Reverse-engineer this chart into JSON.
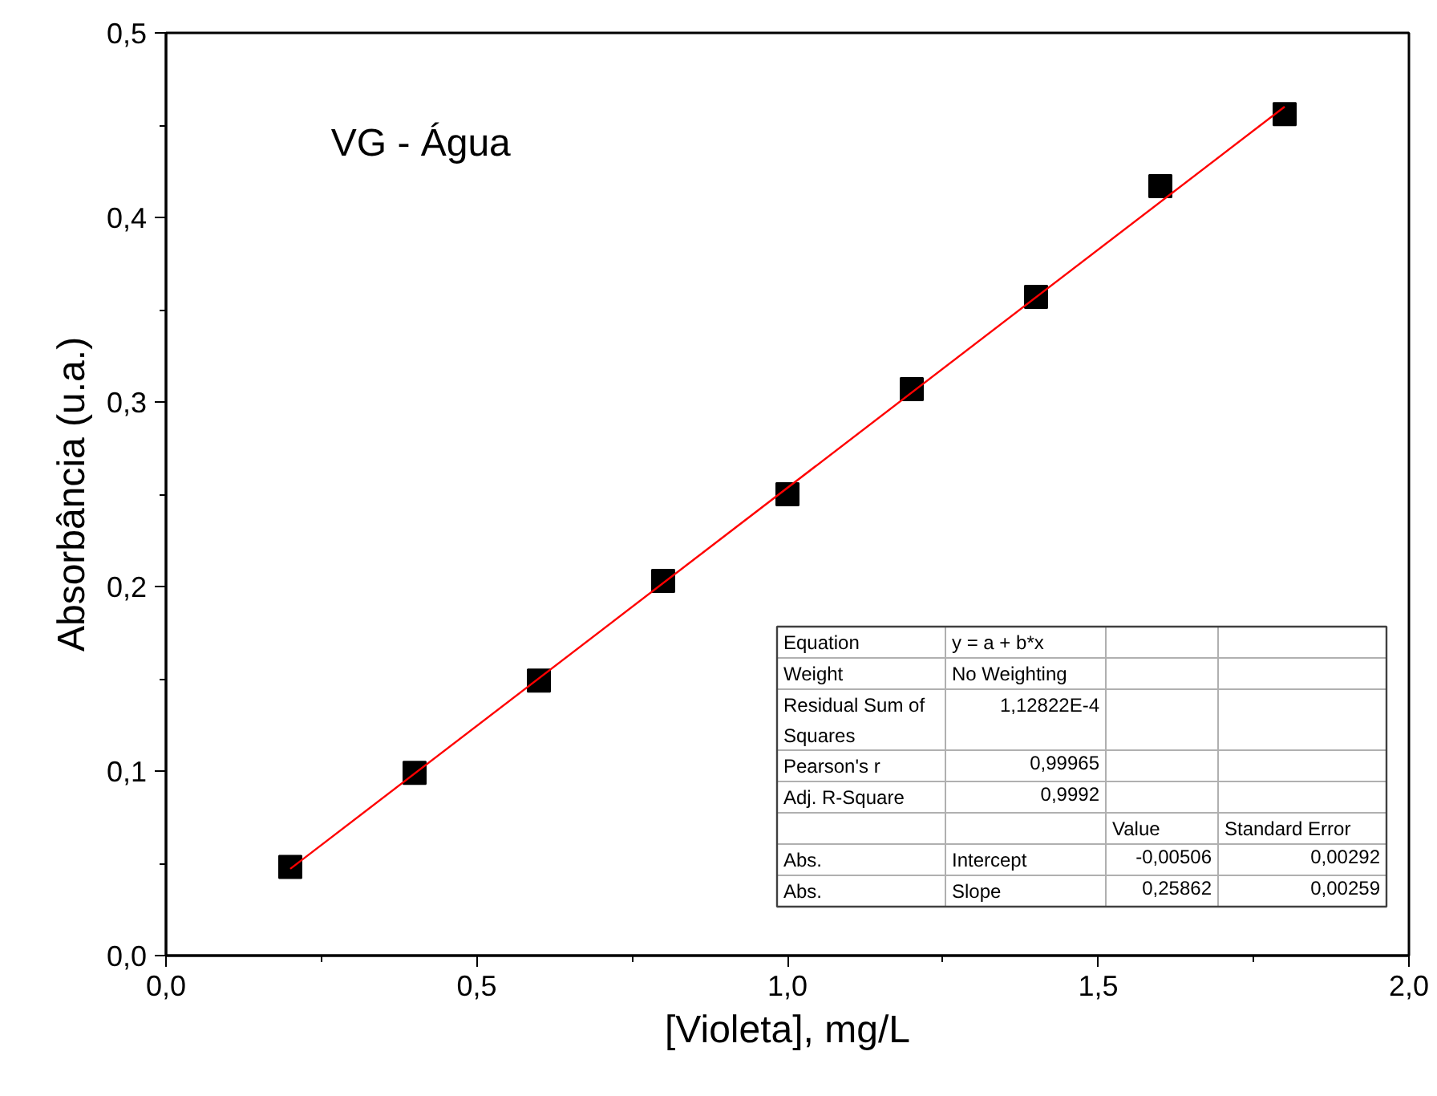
{
  "chart_data": {
    "type": "scatter",
    "title": "VG - Água",
    "xlabel": "[Violeta], mg/L",
    "ylabel": "Absorbância (u.a.)",
    "x": [
      0.2,
      0.4,
      0.6,
      0.8,
      1.0,
      1.2,
      1.4,
      1.6,
      1.8
    ],
    "series": [
      {
        "color": "#000000",
        "marker": "square",
        "values": [
          0.048,
          0.099,
          0.149,
          0.203,
          0.25,
          0.307,
          0.357,
          0.417,
          0.456
        ]
      },
      {
        "type": "line",
        "color": "#ff0000",
        "x": [
          0.2,
          1.8
        ],
        "values": [
          0.047,
          0.46
        ],
        "line_style": "solid",
        "marker": "none"
      }
    ],
    "xlim": [
      0,
      2
    ],
    "ylim": [
      0,
      0.5
    ],
    "xticks": [
      {
        "value": 0,
        "label": "0,0"
      },
      {
        "value": 0.25,
        "label": null
      },
      {
        "value": 0.5,
        "label": "0,5"
      },
      {
        "value": 0.75,
        "label": null
      },
      {
        "value": 1.0,
        "label": "1,0"
      },
      {
        "value": 1.25,
        "label": null
      },
      {
        "value": 1.5,
        "label": "1,5"
      },
      {
        "value": 1.75,
        "label": null
      },
      {
        "value": 2.0,
        "label": "2,0"
      }
    ],
    "yticks": [
      {
        "value": 0,
        "label": "0,0"
      },
      {
        "value": 0.05,
        "label": null
      },
      {
        "value": 0.1,
        "label": "0,1"
      },
      {
        "value": 0.15,
        "label": null
      },
      {
        "value": 0.2,
        "label": "0,2"
      },
      {
        "value": 0.25,
        "label": null
      },
      {
        "value": 0.3,
        "label": "0,3"
      },
      {
        "value": 0.35,
        "label": null
      },
      {
        "value": 0.4,
        "label": "0,4"
      },
      {
        "value": 0.45,
        "label": null
      },
      {
        "value": 0.5,
        "label": "0,5"
      }
    ],
    "grid": false,
    "annotations": [
      "Equation\ty = a + b*x\t\t",
      "Weight\tNo Weighting\t\t",
      "Residual Sum of\nSquares\t1,12822E-4\t\t",
      "Pearson's r\t0,99965\t\t",
      "Adj. R-Square\t0,9992\t\t",
      "\t\tValue\tStandard Error",
      "Abs.\tIntercept\t-0,00506\t0,00292",
      "Abs.\tSlope\t0,25862\t0,00259"
    ]
  }
}
